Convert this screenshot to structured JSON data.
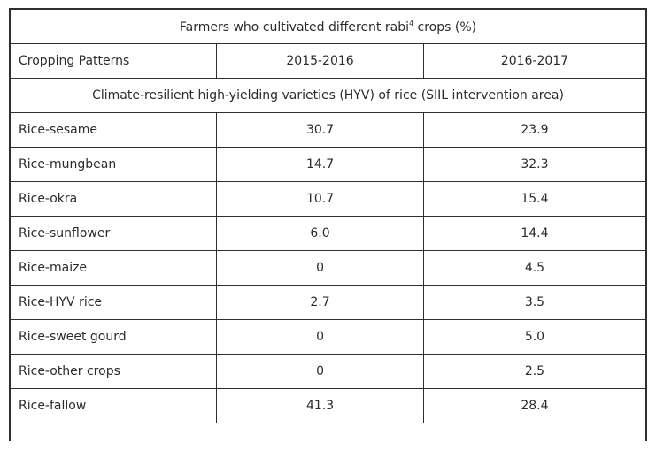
{
  "table": {
    "title_text": "Farmers who cultivated different rabi",
    "title_sup": "4",
    "title_suffix": " crops (%)",
    "headers": [
      "Cropping Patterns",
      "2015-2016",
      "2016-2017"
    ],
    "section_label": "Climate-resilient high-yielding varieties (HYV) of rice (SIIL intervention area)",
    "rows": [
      {
        "pattern": "Rice-sesame",
        "y2015": "30.7",
        "y2016": "23.9"
      },
      {
        "pattern": "Rice-mungbean",
        "y2015": "14.7",
        "y2016": "32.3"
      },
      {
        "pattern": "Rice-okra",
        "y2015": "10.7",
        "y2016": "15.4"
      },
      {
        "pattern": "Rice-sunflower",
        "y2015": "6.0",
        "y2016": "14.4"
      },
      {
        "pattern": "Rice-maize",
        "y2015": "0",
        "y2016": "4.5"
      },
      {
        "pattern": "Rice-HYV rice",
        "y2015": "2.7",
        "y2016": "3.5"
      },
      {
        "pattern": "Rice-sweet gourd",
        "y2015": "0",
        "y2016": "5.0"
      },
      {
        "pattern": "Rice-other crops",
        "y2015": "0",
        "y2016": "2.5"
      },
      {
        "pattern": "Rice-fallow",
        "y2015": "41.3",
        "y2016": "28.4"
      }
    ]
  }
}
